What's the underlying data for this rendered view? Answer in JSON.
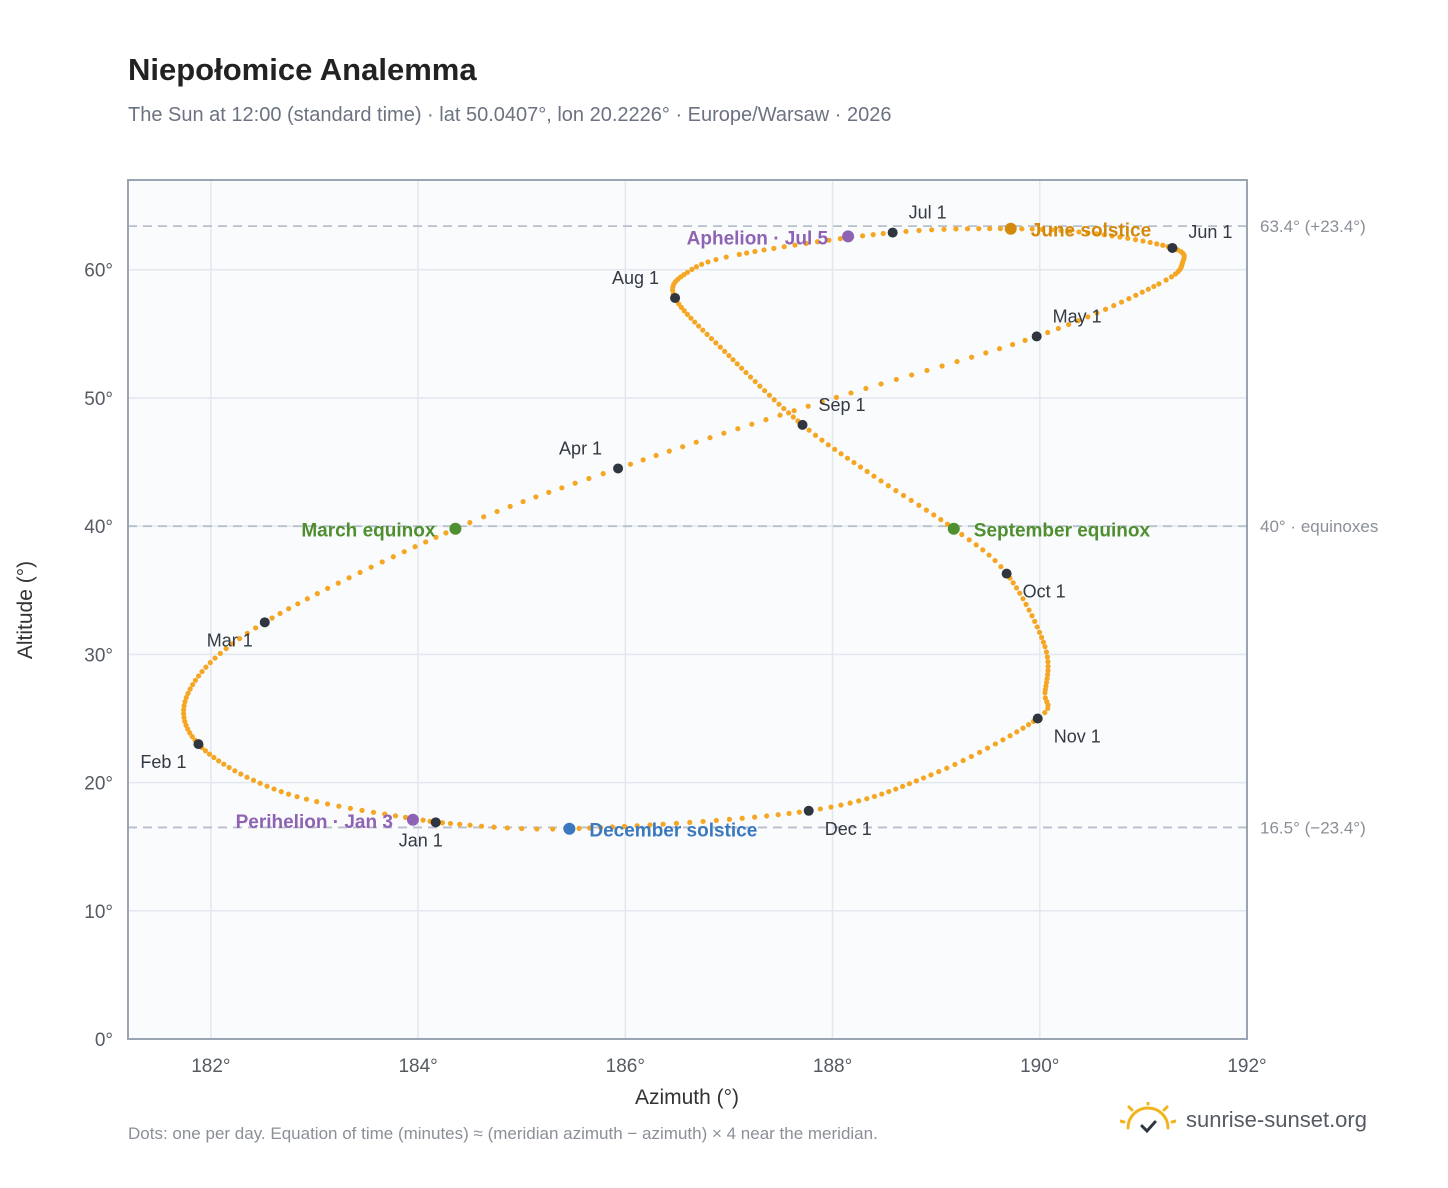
{
  "header": {
    "title": "Niepołomice Analemma",
    "subtitle": "The Sun at 12:00 (standard time) · lat 50.0407°, lon 20.2226° · Europe/Warsaw · 2026"
  },
  "footer": {
    "note": "Dots: one per day. Equation of time (minutes) ≈ (meridian azimuth − azimuth) × 4 near the meridian.",
    "brand": "sunrise-sunset.org"
  },
  "colors": {
    "curve": "#f5a623",
    "month_marker": "#2f3640",
    "equinox": "#4f8f2f",
    "june_solstice": "#d4890a",
    "december_solstice": "#3a78bf",
    "aphelion_perihelion": "#8e63b3",
    "grid": "#e3e8ef",
    "plot_bg": "#f9fbfd",
    "frame": "#9aa4b2",
    "reference_line": "#b8c0cc"
  },
  "chart_data": {
    "type": "scatter",
    "xlabel": "Azimuth (°)",
    "ylabel": "Altitude (°)",
    "xlim": [
      181.2,
      192
    ],
    "ylim": [
      0,
      67
    ],
    "x_ticks": [
      182,
      184,
      186,
      188,
      190,
      192
    ],
    "x_tick_labels": [
      "182°",
      "184°",
      "186°",
      "188°",
      "190°",
      "192°"
    ],
    "y_ticks": [
      0,
      10,
      20,
      30,
      40,
      50,
      60
    ],
    "y_tick_labels": [
      "0°",
      "10°",
      "20°",
      "30°",
      "40°",
      "50°",
      "60°"
    ],
    "grid": true,
    "reference_lines": [
      {
        "y": 63.4,
        "label": "63.4° (+23.4°)"
      },
      {
        "y": 40.0,
        "label": "40° · equinoxes"
      },
      {
        "y": 16.5,
        "label": "16.5° (−23.4°)"
      }
    ],
    "month_markers": [
      {
        "label": "Jan 1",
        "x": 184.17,
        "y": 16.9,
        "pos": "below"
      },
      {
        "label": "Feb 1",
        "x": 181.88,
        "y": 23.0,
        "pos": "below-left"
      },
      {
        "label": "Mar 1",
        "x": 182.52,
        "y": 32.5,
        "pos": "below-left"
      },
      {
        "label": "Apr 1",
        "x": 185.93,
        "y": 44.5,
        "pos": "above-left"
      },
      {
        "label": "May 1",
        "x": 189.97,
        "y": 54.8,
        "pos": "above-right"
      },
      {
        "label": "Jun 1",
        "x": 191.28,
        "y": 61.7,
        "pos": "right"
      },
      {
        "label": "Jul 1",
        "x": 188.58,
        "y": 62.9,
        "pos": "above-right"
      },
      {
        "label": "Aug 1",
        "x": 186.48,
        "y": 57.8,
        "pos": "above-left"
      },
      {
        "label": "Sep 1",
        "x": 187.71,
        "y": 47.9,
        "pos": "above-right"
      },
      {
        "label": "Oct 1",
        "x": 189.68,
        "y": 36.3,
        "pos": "below-right"
      },
      {
        "label": "Nov 1",
        "x": 189.98,
        "y": 25.0,
        "pos": "below-right"
      },
      {
        "label": "Dec 1",
        "x": 187.77,
        "y": 17.8,
        "pos": "below-right"
      }
    ],
    "events": [
      {
        "label": "March equinox",
        "x": 184.36,
        "y": 39.8,
        "pos": "left",
        "color_key": "equinox"
      },
      {
        "label": "September equinox",
        "x": 189.17,
        "y": 39.8,
        "pos": "right",
        "color_key": "equinox"
      },
      {
        "label": "June solstice",
        "x": 189.72,
        "y": 63.2,
        "pos": "right",
        "color_key": "june_solstice"
      },
      {
        "label": "December solstice",
        "x": 185.46,
        "y": 16.4,
        "pos": "right",
        "color_key": "december_solstice"
      },
      {
        "label": "Aphelion · Jul 5",
        "x": 188.15,
        "y": 62.6,
        "pos": "left",
        "color_key": "aphelion_perihelion"
      },
      {
        "label": "Perihelion · Jan 3",
        "x": 183.95,
        "y": 17.1,
        "pos": "left",
        "color_key": "aphelion_perihelion"
      }
    ],
    "curve_knots": [
      [
        1,
        184.17,
        16.9
      ],
      [
        16,
        182.75,
        19.1
      ],
      [
        32,
        181.88,
        23.0
      ],
      [
        46,
        181.8,
        27.3
      ],
      [
        60,
        182.52,
        32.5
      ],
      [
        79,
        184.36,
        39.8
      ],
      [
        91,
        185.93,
        44.5
      ],
      [
        106,
        187.9,
        49.7
      ],
      [
        121,
        189.97,
        54.8
      ],
      [
        136,
        191.15,
        58.9
      ],
      [
        145,
        191.38,
        60.6
      ],
      [
        152,
        191.28,
        61.7
      ],
      [
        163,
        190.55,
        62.8
      ],
      [
        172,
        189.72,
        63.2
      ],
      [
        182,
        188.58,
        62.9
      ],
      [
        197,
        187.1,
        61.2
      ],
      [
        204,
        186.6,
        59.8
      ],
      [
        213,
        186.48,
        57.8
      ],
      [
        228,
        187.0,
        53.3
      ],
      [
        244,
        187.71,
        47.9
      ],
      [
        255,
        188.4,
        43.9
      ],
      [
        266,
        189.17,
        39.8
      ],
      [
        274,
        189.68,
        36.3
      ],
      [
        288,
        190.05,
        30.6
      ],
      [
        299,
        190.05,
        27.0
      ],
      [
        305,
        189.98,
        25.0
      ],
      [
        320,
        188.95,
        20.6
      ],
      [
        335,
        187.77,
        17.8
      ],
      [
        355,
        185.46,
        16.4
      ],
      [
        366,
        184.17,
        16.9
      ]
    ]
  }
}
